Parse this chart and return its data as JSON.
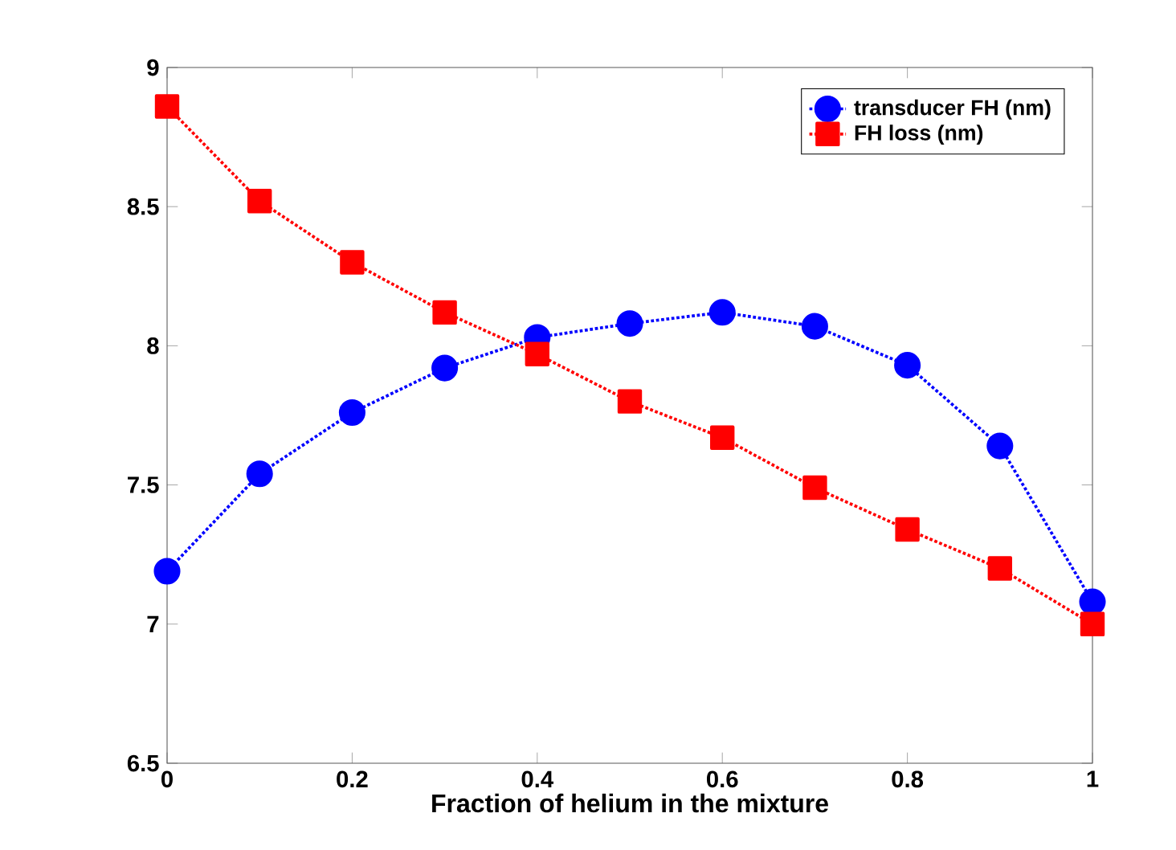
{
  "chart_data": {
    "type": "line",
    "xlabel": "Fraction of helium in the mixture",
    "x": [
      0,
      0.1,
      0.2,
      0.3,
      0.4,
      0.5,
      0.6,
      0.7,
      0.8,
      0.9,
      1
    ],
    "series": [
      {
        "name": "transducer FH (nm)",
        "color": "#0000ff",
        "marker": "circle",
        "line_style": "dotted",
        "values": [
          7.19,
          7.54,
          7.76,
          7.92,
          8.03,
          8.08,
          8.12,
          8.07,
          7.93,
          7.64,
          7.08
        ]
      },
      {
        "name": "FH loss (nm)",
        "color": "#ff0000",
        "marker": "square",
        "line_style": "dotted",
        "values": [
          8.86,
          8.52,
          8.3,
          8.12,
          7.97,
          7.8,
          7.67,
          7.49,
          7.34,
          7.2,
          7.0
        ]
      }
    ],
    "xlim": [
      0,
      1
    ],
    "xticks": [
      0,
      0.2,
      0.4,
      0.6,
      0.8,
      1
    ],
    "ylim": [
      6.5,
      9
    ],
    "yticks": [
      6.5,
      7,
      7.5,
      8,
      8.5,
      9
    ],
    "grid": false,
    "legend": "top right"
  }
}
